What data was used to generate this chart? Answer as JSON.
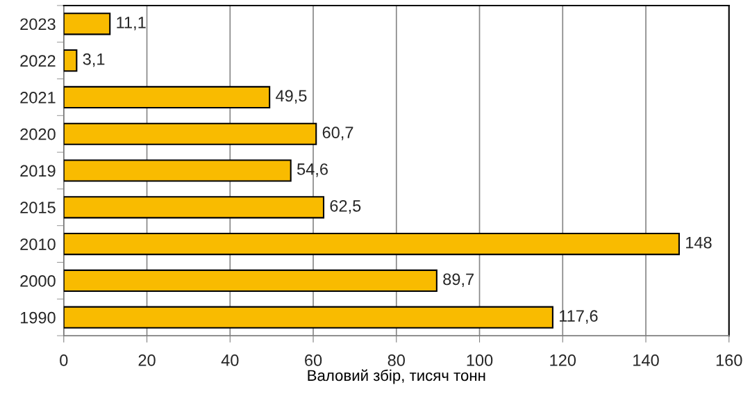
{
  "chart_data": {
    "type": "bar",
    "orientation": "horizontal",
    "categories": [
      "2023",
      "2022",
      "2021",
      "2020",
      "2019",
      "2015",
      "2010",
      "2000",
      "1990"
    ],
    "values": [
      11.1,
      3.1,
      49.5,
      60.7,
      54.6,
      62.5,
      148,
      89.7,
      117.6
    ],
    "value_labels": [
      "11,1",
      "3,1",
      "49,5",
      "60,7",
      "54,6",
      "62,5",
      "148",
      "89,7",
      "117,6"
    ],
    "color": "#f9bb00",
    "xlabel": "Валовий збір, тисяч тонн",
    "xlim": [
      0,
      160
    ],
    "xticks": [
      0,
      20,
      40,
      60,
      80,
      100,
      120,
      140,
      160
    ],
    "grid": "x",
    "legend": false
  }
}
